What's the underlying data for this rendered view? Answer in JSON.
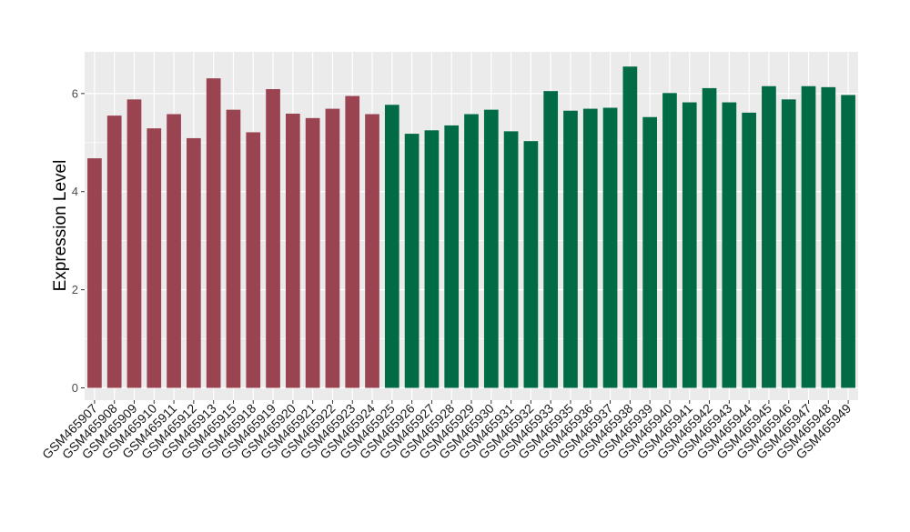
{
  "chart_data": {
    "type": "bar",
    "title": "",
    "xlabel": "",
    "ylabel": "Expression Level",
    "ylim": [
      -0.25,
      6.85
    ],
    "yticks": [
      0,
      2,
      4,
      6
    ],
    "grid": true,
    "legend": "none",
    "colors": {
      "group1": "#9b4451",
      "group2": "#006b45",
      "panel": "#ebebeb",
      "grid": "#ffffff"
    },
    "categories": [
      "GSM465907",
      "GSM465908",
      "GSM465909",
      "GSM465910",
      "GSM465911",
      "GSM465912",
      "GSM465913",
      "GSM465915",
      "GSM465918",
      "GSM465919",
      "GSM465920",
      "GSM465921",
      "GSM465922",
      "GSM465923",
      "GSM465924",
      "GSM465925",
      "GSM465926",
      "GSM465927",
      "GSM465928",
      "GSM465929",
      "GSM465930",
      "GSM465931",
      "GSM465932",
      "GSM465933",
      "GSM465935",
      "GSM465936",
      "GSM465937",
      "GSM465938",
      "GSM465939",
      "GSM465940",
      "GSM465941",
      "GSM465942",
      "GSM465943",
      "GSM465944",
      "GSM465945",
      "GSM465946",
      "GSM465947",
      "GSM465948",
      "GSM465949"
    ],
    "values": [
      4.68,
      5.55,
      5.88,
      5.29,
      5.58,
      5.09,
      6.31,
      5.67,
      5.21,
      6.09,
      5.59,
      5.5,
      5.69,
      5.95,
      5.58,
      5.77,
      5.18,
      5.25,
      5.35,
      5.58,
      5.67,
      5.23,
      5.03,
      6.05,
      5.65,
      5.69,
      5.71,
      6.55,
      5.52,
      6.01,
      5.82,
      6.11,
      5.82,
      5.61,
      6.15,
      5.88,
      6.15,
      6.13,
      5.97
    ],
    "groups": [
      1,
      1,
      1,
      1,
      1,
      1,
      1,
      1,
      1,
      1,
      1,
      1,
      1,
      1,
      1,
      2,
      2,
      2,
      2,
      2,
      2,
      2,
      2,
      2,
      2,
      2,
      2,
      2,
      2,
      2,
      2,
      2,
      2,
      2,
      2,
      2,
      2,
      2,
      2
    ]
  }
}
